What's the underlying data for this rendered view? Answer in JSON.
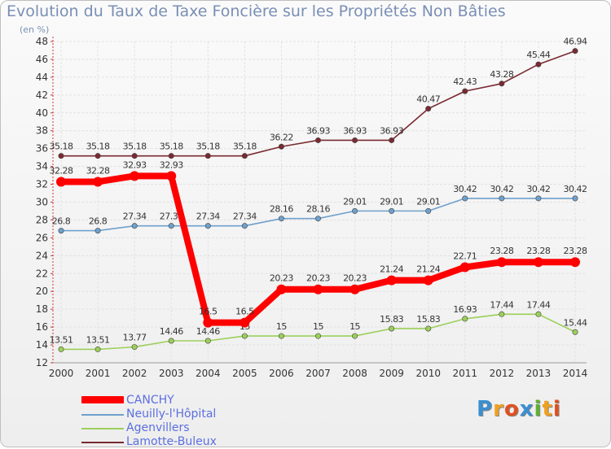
{
  "title": "Evolution du Taux de Taxe Foncière sur les Propriétés Non Bâties",
  "unit_label": "(en %)",
  "logo_text": "Proxiti",
  "chart_data": {
    "type": "line",
    "title": "Evolution du Taux de Taxe Foncière sur les Propriétés Non Bâties",
    "ylabel": "(en %)",
    "xlabel": "",
    "x": [
      "2000",
      "2001",
      "2002",
      "2003",
      "2004",
      "2005",
      "2006",
      "2007",
      "2008",
      "2009",
      "2010",
      "2011",
      "2012",
      "2013",
      "2014"
    ],
    "ylim": [
      12,
      48
    ],
    "yticks": [
      "12",
      "14",
      "16",
      "18",
      "20",
      "22",
      "24",
      "26",
      "28",
      "30",
      "32",
      "34",
      "36",
      "38",
      "40",
      "42",
      "44",
      "46",
      "48"
    ],
    "grid": true,
    "legend_position": "bottom-left",
    "series": [
      {
        "name": "CANCHY",
        "color": "#ff0000",
        "values": [
          32.28,
          32.28,
          32.93,
          32.93,
          16.5,
          16.5,
          20.23,
          20.23,
          20.23,
          21.24,
          21.24,
          22.71,
          23.28,
          23.28,
          23.28
        ],
        "labels": [
          "32.28",
          "32.28",
          "32.93",
          "32.93",
          "16.5",
          "16.5",
          "20.23",
          "20.23",
          "20.23",
          "21.24",
          "21.24",
          "22.71",
          "23.28",
          "23.28",
          "23.28"
        ]
      },
      {
        "name": "Neuilly-l'Hôpital",
        "color": "#6fa0cc",
        "values": [
          26.8,
          26.8,
          27.34,
          27.34,
          27.34,
          27.34,
          28.16,
          28.16,
          29.01,
          29.01,
          29.01,
          30.42,
          30.42,
          30.42,
          30.42
        ],
        "labels": [
          "26.8",
          "26.8",
          "27.34",
          "27.34",
          "27.34",
          "27.34",
          "28.16",
          "28.16",
          "29.01",
          "29.01",
          "29.01",
          "30.42",
          "30.42",
          "30.42",
          "30.42"
        ]
      },
      {
        "name": "Agenvillers",
        "color": "#9ccf5a",
        "values": [
          13.51,
          13.51,
          13.77,
          14.46,
          14.46,
          15,
          15,
          15,
          15,
          15.83,
          15.83,
          16.93,
          17.44,
          17.44,
          15.44
        ],
        "labels": [
          "13.51",
          "13.51",
          "13.77",
          "14.46",
          "14.46",
          "15",
          "15",
          "15",
          "15",
          "15.83",
          "15.83",
          "16.93",
          "17.44",
          "17.44",
          "15.44"
        ]
      },
      {
        "name": "Lamotte-Buleux",
        "color": "#7a2a30",
        "values": [
          35.18,
          35.18,
          35.18,
          35.18,
          35.18,
          35.18,
          36.22,
          36.93,
          36.93,
          36.93,
          40.47,
          42.43,
          43.28,
          45.44,
          46.94
        ],
        "labels": [
          "35.18",
          "35.18",
          "35.18",
          "35.18",
          "35.18",
          "35.18",
          "36.22",
          "36.93",
          "36.93",
          "36.93",
          "40.47",
          "42.43",
          "43.28",
          "45.44",
          "46.94"
        ]
      }
    ]
  },
  "legend": [
    {
      "label": "CANCHY",
      "color": "#ff0000"
    },
    {
      "label": "Neuilly-l'Hôpital",
      "color": "#6fa0cc"
    },
    {
      "label": "Agenvillers",
      "color": "#9ccf5a"
    },
    {
      "label": "Lamotte-Buleux",
      "color": "#7a2a30"
    }
  ]
}
